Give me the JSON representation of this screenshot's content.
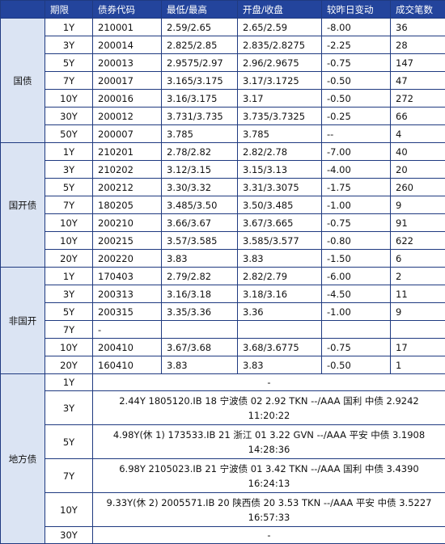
{
  "headers": [
    "期限",
    "债券代码",
    "最低/最高",
    "开盘/收盘",
    "较昨日变动",
    "成交笔数"
  ],
  "groups": {
    "guozhai": {
      "name": "国债",
      "rows": [
        {
          "term": "1Y",
          "code": "210001",
          "lowhigh": "2.59/2.65",
          "openclose": "2.65/2.59",
          "change": "-8.00",
          "trades": "36"
        },
        {
          "term": "3Y",
          "code": "200014",
          "lowhigh": "2.825/2.85",
          "openclose": "2.835/2.8275",
          "change": "-2.25",
          "trades": "28"
        },
        {
          "term": "5Y",
          "code": "200013",
          "lowhigh": "2.9575/2.97",
          "openclose": "2.96/2.9675",
          "change": "-0.75",
          "trades": "147"
        },
        {
          "term": "7Y",
          "code": "200017",
          "lowhigh": "3.165/3.175",
          "openclose": "3.17/3.1725",
          "change": "-0.50",
          "trades": "47"
        },
        {
          "term": "10Y",
          "code": "200016",
          "lowhigh": "3.16/3.175",
          "openclose": "3.17",
          "change": "-0.50",
          "trades": "272"
        },
        {
          "term": "30Y",
          "code": "200012",
          "lowhigh": "3.731/3.735",
          "openclose": "3.735/3.7325",
          "change": "-0.25",
          "trades": "66"
        },
        {
          "term": "50Y",
          "code": "200007",
          "lowhigh": "3.785",
          "openclose": "3.785",
          "change": "--",
          "trades": "4"
        }
      ]
    },
    "guokaizhai": {
      "name": "国开债",
      "rows": [
        {
          "term": "1Y",
          "code": "210201",
          "lowhigh": "2.78/2.82",
          "openclose": "2.82/2.78",
          "change": "-7.00",
          "trades": "40"
        },
        {
          "term": "3Y",
          "code": "210202",
          "lowhigh": "3.12/3.15",
          "openclose": "3.15/3.13",
          "change": "-4.00",
          "trades": "20"
        },
        {
          "term": "5Y",
          "code": "200212",
          "lowhigh": "3.30/3.32",
          "openclose": "3.31/3.3075",
          "change": "-1.75",
          "trades": "260"
        },
        {
          "term": "7Y",
          "code": "180205",
          "lowhigh": "3.485/3.50",
          "openclose": "3.50/3.485",
          "change": "-1.00",
          "trades": "9"
        },
        {
          "term": "10Y",
          "code": "200210",
          "lowhigh": "3.66/3.67",
          "openclose": "3.67/3.665",
          "change": "-0.75",
          "trades": "91"
        },
        {
          "term": "10Y",
          "code": "200215",
          "lowhigh": "3.57/3.585",
          "openclose": "3.585/3.577",
          "change": "-0.80",
          "trades": "622"
        },
        {
          "term": "20Y",
          "code": "200220",
          "lowhigh": "3.83",
          "openclose": "3.83",
          "change": "-1.50",
          "trades": "6"
        }
      ]
    },
    "feiguokai": {
      "name": "非国开",
      "rows": [
        {
          "term": "1Y",
          "code": "170403",
          "lowhigh": "2.79/2.82",
          "openclose": "2.82/2.79",
          "change": "-6.00",
          "trades": "2"
        },
        {
          "term": "3Y",
          "code": "200313",
          "lowhigh": "3.16/3.18",
          "openclose": "3.18/3.16",
          "change": "-4.50",
          "trades": "11"
        },
        {
          "term": "5Y",
          "code": "200315",
          "lowhigh": "3.35/3.36",
          "openclose": "3.36",
          "change": "-1.00",
          "trades": "9"
        },
        {
          "term": "7Y",
          "code": "-",
          "lowhigh": "",
          "openclose": "",
          "change": "",
          "trades": ""
        },
        {
          "term": "10Y",
          "code": "200410",
          "lowhigh": "3.67/3.68",
          "openclose": "3.68/3.6775",
          "change": "-0.75",
          "trades": "17"
        },
        {
          "term": "20Y",
          "code": "160410",
          "lowhigh": "3.83",
          "openclose": "3.83",
          "change": "-0.50",
          "trades": "1"
        }
      ]
    },
    "difangzhai": {
      "name": "地方债",
      "rows": [
        {
          "term": "1Y",
          "text": "-"
        },
        {
          "term": "3Y",
          "text": "2.44Y 1805120.IB 18 宁波债 02 2.92 TKN --/AAA 国利 中债 2.9242 11:20:22"
        },
        {
          "term": "5Y",
          "text": "4.98Y(休 1) 173533.IB 21 浙江 01 3.22 GVN --/AAA 平安 中债 3.1908 14:28:36"
        },
        {
          "term": "7Y",
          "text": "6.98Y 2105023.IB 21 宁波债 01 3.42 TKN --/AAA 国利 中债 3.4390 16:24:13"
        },
        {
          "term": "10Y",
          "text": "9.33Y(休 2) 2005571.IB 20 陕西债 20 3.53 TKN --/AAA 平安 中债 3.5227 16:57:33"
        },
        {
          "term": "30Y",
          "text": "-"
        }
      ]
    }
  }
}
